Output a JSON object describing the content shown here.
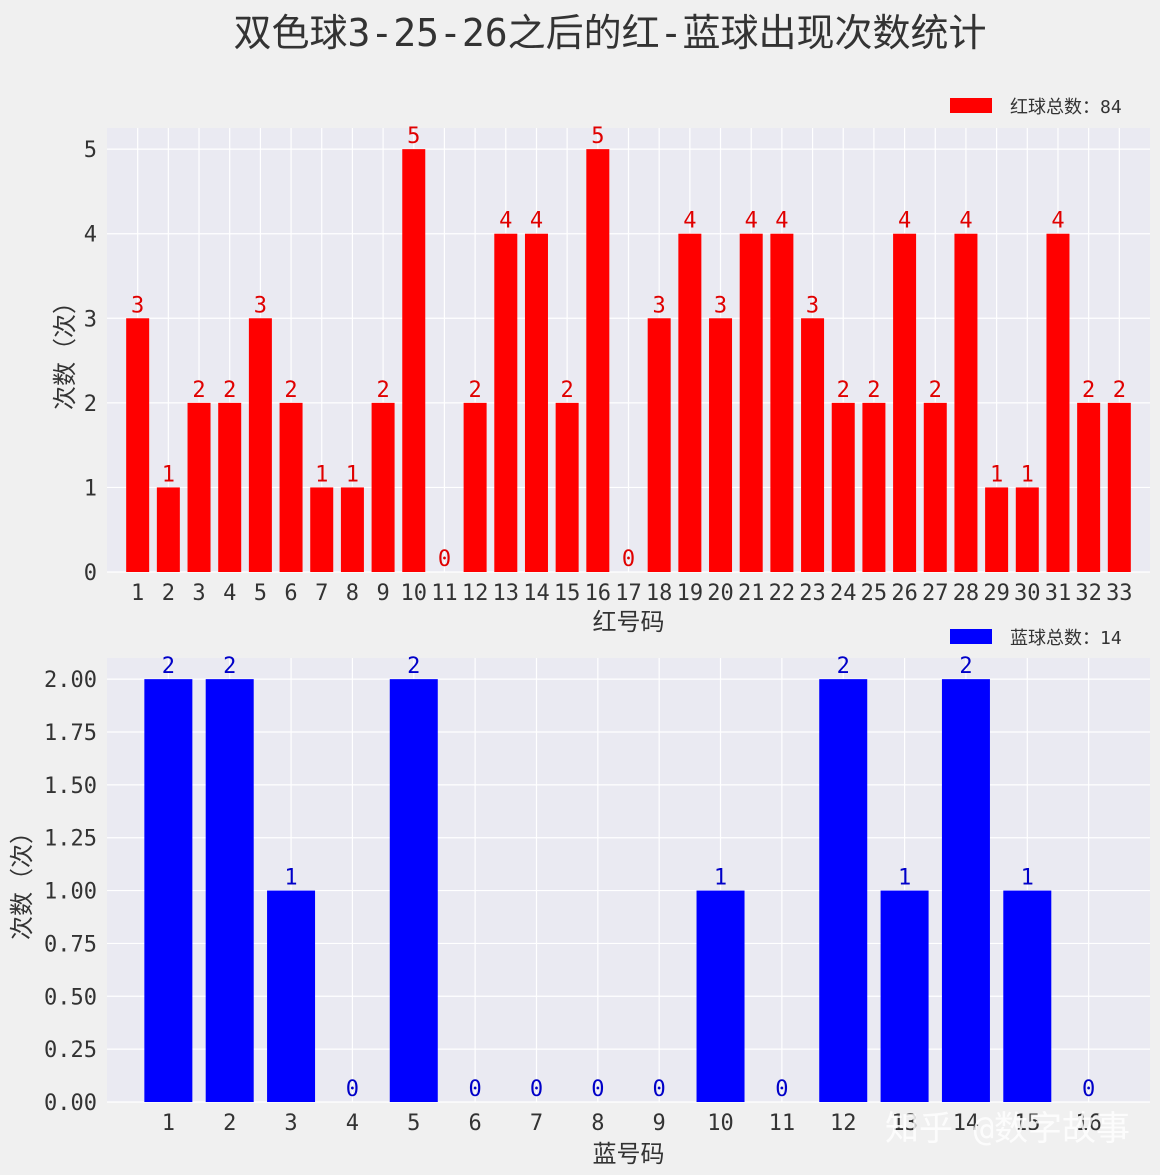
{
  "title": "双色球3-25-26之后的红-蓝球出现次数统计",
  "watermark": "知乎 @数字故事",
  "colors": {
    "red": "#ff0000",
    "blue": "#0000ff",
    "axes_bg": "#eaeaf2",
    "grid": "#ffffff"
  },
  "chart_data": [
    {
      "type": "bar",
      "xlabel": "红号码",
      "ylabel": "次数（次）",
      "legend": "红球总数：84",
      "legend_position": "top-right",
      "grid": true,
      "ylim": [
        0,
        5.25
      ],
      "yticks": [
        "0",
        "1",
        "2",
        "3",
        "4",
        "5"
      ],
      "categories": [
        "1",
        "2",
        "3",
        "4",
        "5",
        "6",
        "7",
        "8",
        "9",
        "10",
        "11",
        "12",
        "13",
        "14",
        "15",
        "16",
        "17",
        "18",
        "19",
        "20",
        "21",
        "22",
        "23",
        "24",
        "25",
        "26",
        "27",
        "28",
        "29",
        "30",
        "31",
        "32",
        "33"
      ],
      "values": [
        3,
        1,
        2,
        2,
        3,
        2,
        1,
        1,
        2,
        5,
        0,
        2,
        4,
        4,
        2,
        5,
        0,
        3,
        4,
        3,
        4,
        4,
        3,
        2,
        2,
        4,
        2,
        4,
        1,
        1,
        4,
        2,
        2
      ]
    },
    {
      "type": "bar",
      "xlabel": "蓝号码",
      "ylabel": "次数（次）",
      "legend": "蓝球总数：14",
      "legend_position": "top-right",
      "grid": true,
      "ylim": [
        0,
        2.1
      ],
      "yticks": [
        "0.00",
        "0.25",
        "0.50",
        "0.75",
        "1.00",
        "1.25",
        "1.50",
        "1.75",
        "2.00"
      ],
      "categories": [
        "1",
        "2",
        "3",
        "4",
        "5",
        "6",
        "7",
        "8",
        "9",
        "10",
        "11",
        "12",
        "13",
        "14",
        "15",
        "16"
      ],
      "values": [
        2,
        2,
        1,
        0,
        2,
        0,
        0,
        0,
        0,
        1,
        0,
        2,
        1,
        2,
        1,
        0
      ]
    }
  ]
}
